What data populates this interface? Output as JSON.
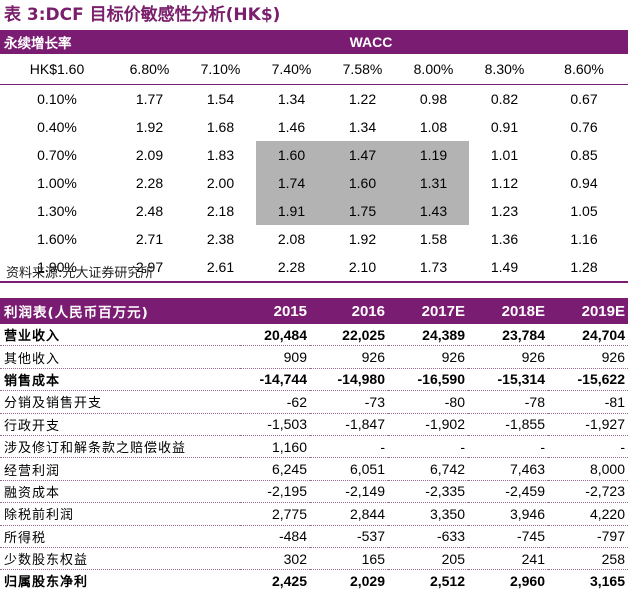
{
  "title": "表 3:DCF 目标价敏感性分析(HK$)",
  "sensitivity": {
    "corner_label": "永续增长率",
    "wacc_label": "WACC",
    "base_label": "HK$1.60",
    "wacc_values": [
      "6.80%",
      "7.10%",
      "7.40%",
      "7.58%",
      "8.00%",
      "8.30%",
      "8.60%"
    ],
    "rows": [
      {
        "g": "0.10%",
        "v": [
          "1.77",
          "1.54",
          "1.34",
          "1.22",
          "0.98",
          "0.82",
          "0.67"
        ]
      },
      {
        "g": "0.40%",
        "v": [
          "1.92",
          "1.68",
          "1.46",
          "1.34",
          "1.08",
          "0.91",
          "0.76"
        ]
      },
      {
        "g": "0.70%",
        "v": [
          "2.09",
          "1.83",
          "1.60",
          "1.47",
          "1.19",
          "1.01",
          "0.85"
        ]
      },
      {
        "g": "1.00%",
        "v": [
          "2.28",
          "2.00",
          "1.74",
          "1.60",
          "1.31",
          "1.12",
          "0.94"
        ]
      },
      {
        "g": "1.30%",
        "v": [
          "2.48",
          "2.18",
          "1.91",
          "1.75",
          "1.43",
          "1.23",
          "1.05"
        ]
      },
      {
        "g": "1.60%",
        "v": [
          "2.71",
          "2.38",
          "2.08",
          "1.92",
          "1.58",
          "1.36",
          "1.16"
        ]
      },
      {
        "g": "1.90%",
        "v": [
          "2.97",
          "2.61",
          "2.28",
          "2.10",
          "1.73",
          "1.49",
          "1.28"
        ]
      }
    ],
    "highlight_color": "#b3b3b3"
  },
  "source": "资料来源:光大证券研究所",
  "income": {
    "header_label": "利润表(人民币百万元)",
    "years": [
      "2015",
      "2016",
      "2017E",
      "2018E",
      "2019E"
    ],
    "rows": [
      {
        "label": "营业收入",
        "bold": true,
        "v": [
          "20,484",
          "22,025",
          "24,389",
          "23,784",
          "24,704"
        ]
      },
      {
        "label": "其他收入",
        "bold": false,
        "v": [
          "909",
          "926",
          "926",
          "926",
          "926"
        ]
      },
      {
        "label": "销售成本",
        "bold": true,
        "v": [
          "-14,744",
          "-14,980",
          "-16,590",
          "-15,314",
          "-15,622"
        ]
      },
      {
        "label": "分销及销售开支",
        "bold": false,
        "v": [
          "-62",
          "-73",
          "-80",
          "-78",
          "-81"
        ]
      },
      {
        "label": "行政开支",
        "bold": false,
        "v": [
          "-1,503",
          "-1,847",
          "-1,902",
          "-1,855",
          "-1,927"
        ]
      },
      {
        "label": "涉及修订和解条款之赔偿收益",
        "bold": false,
        "v": [
          "1,160",
          "-",
          "-",
          "-",
          "-"
        ]
      },
      {
        "label": "经营利润",
        "bold": false,
        "v": [
          "6,245",
          "6,051",
          "6,742",
          "7,463",
          "8,000"
        ]
      },
      {
        "label": "融资成本",
        "bold": false,
        "v": [
          "-2,195",
          "-2,149",
          "-2,335",
          "-2,459",
          "-2,723"
        ]
      },
      {
        "label": "除税前利润",
        "bold": false,
        "v": [
          "2,775",
          "2,844",
          "3,350",
          "3,946",
          "4,220"
        ]
      },
      {
        "label": "所得税",
        "bold": false,
        "v": [
          "-484",
          "-537",
          "-633",
          "-745",
          "-797"
        ]
      },
      {
        "label": "少数股东权益",
        "bold": false,
        "v": [
          "302",
          "165",
          "205",
          "241",
          "258"
        ]
      },
      {
        "label": "归属股东净利",
        "bold": true,
        "v": [
          "2,425",
          "2,029",
          "2,512",
          "2,960",
          "3,165"
        ]
      }
    ]
  },
  "colors": {
    "brand_purple": "#7b1c73",
    "title_purple": "#7a1f6b"
  }
}
